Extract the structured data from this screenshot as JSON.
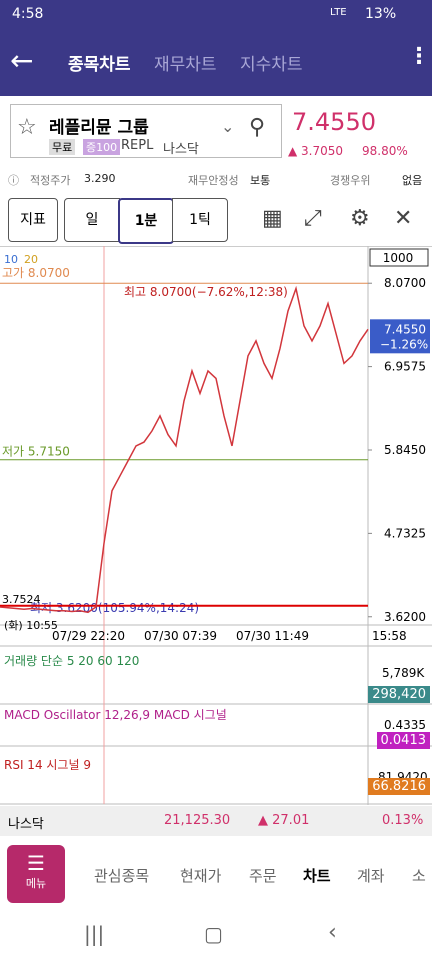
{
  "status_bar": {
    "time": "4:58",
    "network": "LTE",
    "battery": "13%"
  },
  "tabs": [
    "종목차트",
    "재무차트",
    "지수차트"
  ],
  "stock": {
    "name": "레플리뮨 그룹",
    "badges": [
      "무료",
      "증100"
    ],
    "ticker": "REPL",
    "market": "나스닥",
    "price": "7.4550",
    "change": "3.7050",
    "change_pct": "98.80%"
  },
  "info": [
    {
      "label": "적정주가",
      "value": "3.290"
    },
    {
      "label": "재무안정성",
      "value": "보통"
    },
    {
      "label": "경쟁우위",
      "value": "없음"
    }
  ],
  "toolbar": [
    "지표",
    "일",
    "1분",
    "1틱"
  ],
  "chart_data": {
    "type": "line",
    "color": "#d2363c",
    "ma_labels": [
      "10",
      "20"
    ],
    "unit_box": "1000",
    "values": [
      3.75,
      3.74,
      3.73,
      3.72,
      3.73,
      3.72,
      3.71,
      3.7,
      3.7,
      3.69,
      3.7,
      3.68,
      3.75,
      4.6,
      5.3,
      5.5,
      5.7,
      5.9,
      5.95,
      6.1,
      6.3,
      6.05,
      5.9,
      6.5,
      6.9,
      6.6,
      6.9,
      6.8,
      6.3,
      5.9,
      6.5,
      7.1,
      7.3,
      7.0,
      6.8,
      7.2,
      7.7,
      8.0,
      7.5,
      7.3,
      7.5,
      7.8,
      7.4,
      7.0,
      7.1,
      7.3,
      7.455
    ],
    "ylim": [
      3.51,
      8.54
    ],
    "yticks": [
      {
        "value": 8.07,
        "label": "8.0700"
      },
      {
        "value": 6.9575,
        "label": "6.9575"
      },
      {
        "value": 5.845,
        "label": "5.8450"
      },
      {
        "value": 4.7325,
        "label": "4.7325"
      },
      {
        "value": 3.62,
        "label": "3.6200"
      }
    ],
    "x_labels": [
      "07/29 22:20",
      "07/30 07:39",
      "07/30 11:49",
      "15:58"
    ],
    "high_line": {
      "value": 8.07,
      "label": "고가 8.0700"
    },
    "low_line": {
      "value": 5.715,
      "label": "저가 5.7150"
    },
    "bottom_line": {
      "value": 3.62
    },
    "annotations": [
      "최고 8.0700(−7.62%,12:38)",
      "최저 3.6200(105.94%,14:24)",
      "3.7524",
      "(화) 10:55"
    ],
    "current": {
      "value": 7.455,
      "label": "7.4550",
      "change": "−1.26%"
    }
  },
  "panels": [
    {
      "title": "거래량 단순 5 20 60 120",
      "tick": "5,789K",
      "current": "298,420"
    },
    {
      "title": "MACD Oscillator 12,26,9 MACD 시그널",
      "tick": "0.4335",
      "current": "0.0413"
    },
    {
      "title": "RSI 14 시그널 9",
      "tick": "81.9420",
      "current": "66.8216"
    }
  ],
  "index_bar": {
    "name": "나스닥",
    "value": "21,125.30",
    "change": "27.01",
    "pct": "0.13%"
  },
  "nav": {
    "menu": "메뉴",
    "items": [
      "관심종목",
      "현재가",
      "주문",
      "차트",
      "계좌",
      "소"
    ]
  }
}
